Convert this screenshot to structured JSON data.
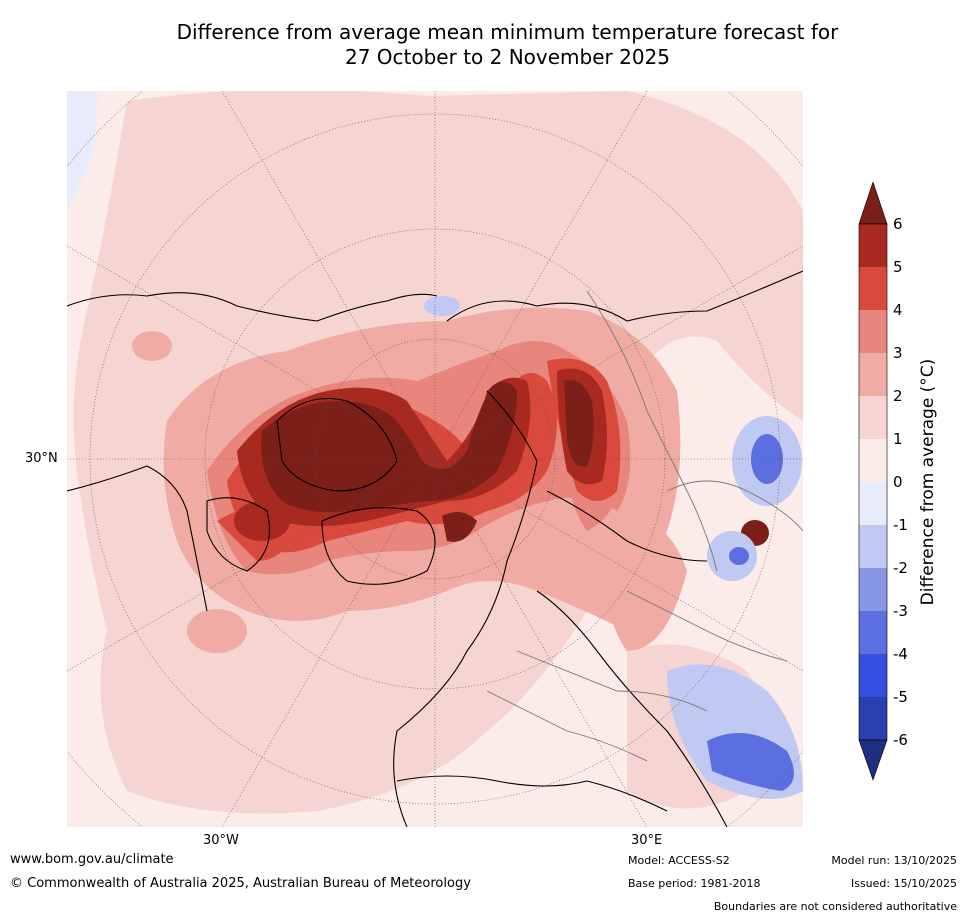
{
  "title": {
    "line1": "Difference from average mean minimum temperature forecast for",
    "line2": "27 October to 2 November 2025"
  },
  "map": {
    "projection": "north-polar stereographic",
    "lat_label": "30°N",
    "lon_labels": [
      "30°W",
      "30°E"
    ]
  },
  "colorbar": {
    "label": "Difference from average (°C)",
    "ticks": [
      "6",
      "5",
      "4",
      "3",
      "2",
      "1",
      "0",
      "-1",
      "-2",
      "-3",
      "-4",
      "-5",
      "-6"
    ],
    "colors": {
      "gt6": "#7b1f18",
      "5to6": "#a8291f",
      "4to5": "#d94a3c",
      "3to4": "#e8857c",
      "2to3": "#f0aba4",
      "1to2": "#f5d4d1",
      "0to1": "#fbece9",
      "m1to0": "#e7ebfa",
      "m2tom1": "#c0c9f1",
      "m3tom2": "#8896e6",
      "m4tom3": "#5b6fe0",
      "m5tom4": "#3550e0",
      "m6tom5": "#2a40b0",
      "ltm6": "#1f2e80"
    }
  },
  "footer": {
    "website": "www.bom.gov.au/climate",
    "copyright": "© Commonwealth of Australia 2025, Australian Bureau of Meteorology",
    "model": "Model: ACCESS-S2",
    "base_period": "Base period: 1981-2018",
    "model_run": "Model run: 13/10/2025",
    "issued": "Issued: 15/10/2025",
    "disclaimer": "Boundaries are not considered authoritative"
  }
}
